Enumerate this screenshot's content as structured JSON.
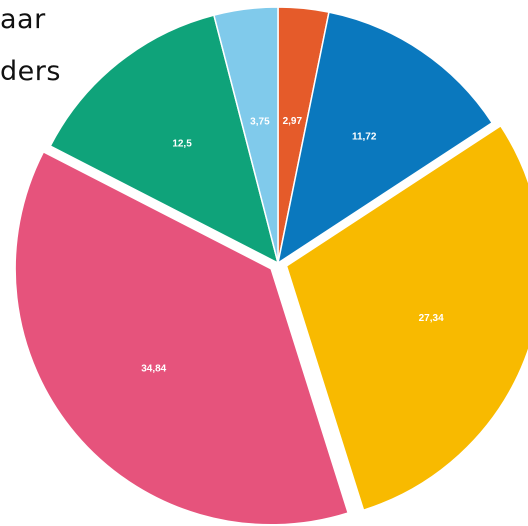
{
  "title_lines": [
    "aar",
    "ders"
  ],
  "chart_data": {
    "type": "pie",
    "title": "",
    "start_angle_deg": 0,
    "direction": "clockwise",
    "slices": [
      {
        "label": "2,97",
        "value": 2.97,
        "color": "#E55B2A",
        "exploded": false
      },
      {
        "label": "11,72",
        "value": 11.72,
        "color": "#0A78BE",
        "exploded": false
      },
      {
        "label": "27,34",
        "value": 27.34,
        "color": "#F8BA00",
        "exploded": true
      },
      {
        "label": "34,84",
        "value": 34.84,
        "color": "#E6537C",
        "exploded": true
      },
      {
        "label": "12,5",
        "value": 12.5,
        "color": "#0FA37A",
        "exploded": false
      },
      {
        "label": "3,75",
        "value": 3.75,
        "color": "#80CAEB",
        "exploded": false
      }
    ]
  }
}
